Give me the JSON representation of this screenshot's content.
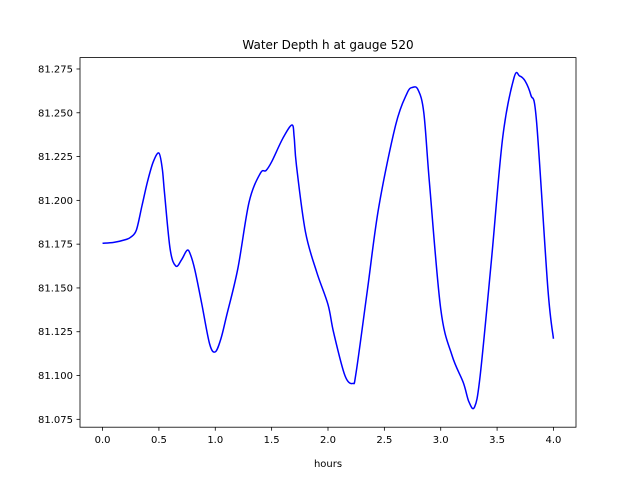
{
  "chart_data": {
    "type": "line",
    "title": "Water Depth h at gauge 520",
    "xlabel": "hours",
    "ylabel": "",
    "xlim": [
      -0.2,
      4.2
    ],
    "ylim": [
      81.0705,
      81.2815
    ],
    "x_ticks": [
      0.0,
      0.5,
      1.0,
      1.5,
      2.0,
      2.5,
      3.0,
      3.5,
      4.0
    ],
    "x_tick_labels": [
      "0.0",
      "0.5",
      "1.0",
      "1.5",
      "2.0",
      "2.5",
      "3.0",
      "3.5",
      "4.0"
    ],
    "y_ticks": [
      81.075,
      81.1,
      81.125,
      81.15,
      81.175,
      81.2,
      81.225,
      81.25,
      81.275
    ],
    "y_tick_labels": [
      "81.075",
      "81.100",
      "81.125",
      "81.150",
      "81.175",
      "81.200",
      "81.225",
      "81.250",
      "81.275"
    ],
    "grid": false,
    "series": [
      {
        "color": "#0000ff",
        "x": [
          0.0,
          0.1,
          0.2,
          0.25,
          0.3,
          0.35,
          0.4,
          0.45,
          0.5,
          0.53,
          0.55,
          0.6,
          0.65,
          0.7,
          0.75,
          0.78,
          0.82,
          0.88,
          0.95,
          1.0,
          1.05,
          1.1,
          1.2,
          1.3,
          1.4,
          1.45,
          1.5,
          1.6,
          1.68,
          1.7,
          1.72,
          1.8,
          1.9,
          2.0,
          2.05,
          2.15,
          2.22,
          2.25,
          2.35,
          2.45,
          2.6,
          2.7,
          2.75,
          2.8,
          2.85,
          2.9,
          3.0,
          3.1,
          3.2,
          3.25,
          3.3,
          3.35,
          3.45,
          3.55,
          3.65,
          3.7,
          3.75,
          3.8,
          3.85,
          3.95,
          4.0
        ],
        "values": [
          81.1755,
          81.176,
          81.1775,
          81.179,
          81.183,
          81.197,
          81.211,
          81.222,
          81.227,
          81.218,
          81.204,
          81.172,
          81.1625,
          81.166,
          81.1715,
          81.169,
          81.16,
          81.141,
          81.118,
          81.1135,
          81.121,
          81.134,
          81.161,
          81.199,
          81.2155,
          81.217,
          81.222,
          81.2355,
          81.243,
          81.236,
          81.22,
          81.182,
          81.159,
          81.1405,
          81.1245,
          81.1,
          81.0955,
          81.102,
          81.149,
          81.196,
          81.243,
          81.261,
          81.2645,
          81.263,
          81.25,
          81.21,
          81.138,
          81.1115,
          81.096,
          81.085,
          81.082,
          81.1,
          81.166,
          81.236,
          81.27,
          81.271,
          81.268,
          81.26,
          81.245,
          81.15,
          81.121
        ]
      }
    ]
  }
}
